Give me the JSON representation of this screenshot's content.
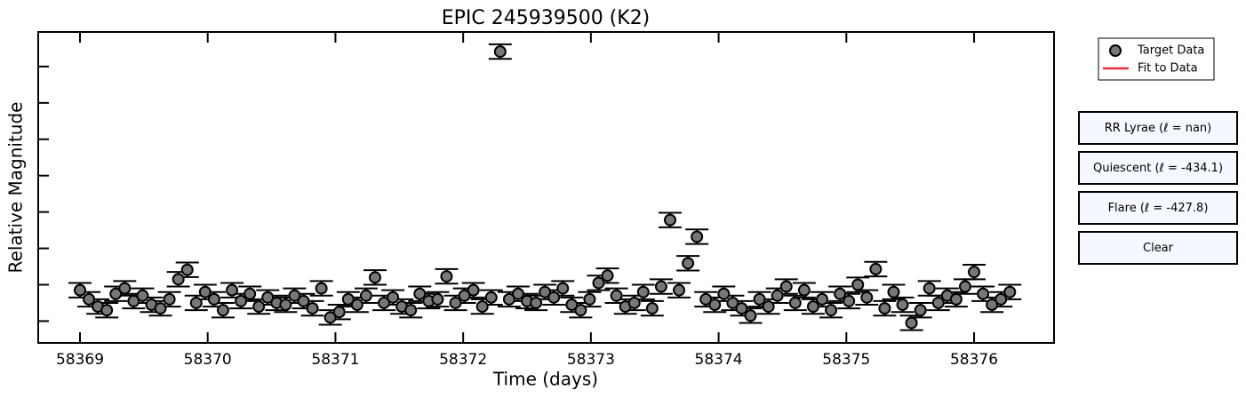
{
  "chart_data": {
    "type": "scatter",
    "title": "EPIC 245939500 (K2)",
    "xlabel": "Time (days)",
    "ylabel": "Relative Magnitude",
    "xlim": [
      58368.673,
      58376.626
    ],
    "xticks": [
      58369,
      58370,
      58371,
      58372,
      58373,
      58374,
      58375,
      58376
    ],
    "ylim": [
      -0.6,
      7.95
    ],
    "yticks": [
      0,
      1,
      2,
      3,
      4,
      5,
      6,
      7
    ],
    "ytick_labels": false,
    "yerr": 0.2,
    "legend": "upper right",
    "x": [
      58369.0,
      58369.07,
      58369.14,
      58369.21,
      58369.28,
      58369.35,
      58369.42,
      58369.49,
      58369.56,
      58369.63,
      58369.7,
      58369.77,
      58369.84,
      58369.91,
      58369.98,
      58370.05,
      58370.12,
      58370.19,
      58370.26,
      58370.33,
      58370.4,
      58370.47,
      58370.54,
      58370.61,
      58370.68,
      58370.75,
      58370.82,
      58370.89,
      58370.96,
      58371.03,
      58371.1,
      58371.17,
      58371.24,
      58371.31,
      58371.38,
      58371.45,
      58371.52,
      58371.59,
      58371.66,
      58371.73,
      58371.8,
      58371.87,
      58371.94,
      58372.01,
      58372.08,
      58372.15,
      58372.22,
      58372.29,
      58372.36,
      58372.43,
      58372.5,
      58372.57,
      58372.64,
      58372.71,
      58372.78,
      58372.85,
      58372.92,
      58372.99,
      58373.06,
      58373.13,
      58373.2,
      58373.27,
      58373.34,
      58373.41,
      58373.48,
      58373.55,
      58373.62,
      58373.69,
      58373.76,
      58373.83,
      58373.9,
      58373.97,
      58374.04,
      58374.11,
      58374.18,
      58374.25,
      58374.32,
      58374.39,
      58374.46,
      58374.53,
      58374.6,
      58374.67,
      58374.74,
      58374.81,
      58374.88,
      58374.95,
      58375.02,
      58375.09,
      58375.16,
      58375.23,
      58375.3,
      58375.37,
      58375.44,
      58375.51,
      58375.58,
      58375.65,
      58375.72,
      58375.79,
      58375.86,
      58375.93,
      58376.0,
      58376.07,
      58376.14,
      58376.21,
      58376.28
    ],
    "series": [
      {
        "name": "Target Data",
        "color": "#777777",
        "values": [
          0.85,
          0.6,
          0.4,
          0.3,
          0.75,
          0.9,
          0.55,
          0.7,
          0.45,
          0.35,
          0.6,
          1.15,
          1.41,
          0.5,
          0.8,
          0.6,
          0.3,
          0.85,
          0.55,
          0.75,
          0.4,
          0.65,
          0.5,
          0.45,
          0.7,
          0.55,
          0.35,
          0.9,
          0.1,
          0.25,
          0.6,
          0.45,
          0.7,
          1.2,
          0.5,
          0.65,
          0.4,
          0.3,
          0.75,
          0.55,
          0.6,
          1.23,
          0.5,
          0.7,
          0.85,
          0.4,
          0.65,
          7.41,
          0.6,
          0.75,
          0.55,
          0.5,
          0.8,
          0.65,
          0.9,
          0.45,
          0.3,
          0.6,
          1.05,
          1.25,
          0.7,
          0.4,
          0.5,
          0.8,
          0.35,
          0.95,
          2.78,
          0.85,
          1.59,
          2.32,
          0.6,
          0.45,
          0.75,
          0.5,
          0.35,
          0.15,
          0.6,
          0.4,
          0.7,
          0.95,
          0.5,
          0.85,
          0.4,
          0.6,
          0.3,
          0.75,
          0.55,
          1.0,
          0.65,
          1.43,
          0.35,
          0.8,
          0.45,
          -0.05,
          0.3,
          0.9,
          0.5,
          0.7,
          0.6,
          0.95,
          1.35,
          0.75,
          0.45,
          0.6,
          0.8
        ]
      },
      {
        "name": "Fit to Data",
        "color": "#e8313a",
        "values": []
      }
    ]
  },
  "buttons": [
    "RR Lyrae (ℓ = nan)",
    "Quiescent (ℓ = -434.1)",
    "Flare (ℓ = -427.8)",
    "Clear"
  ]
}
